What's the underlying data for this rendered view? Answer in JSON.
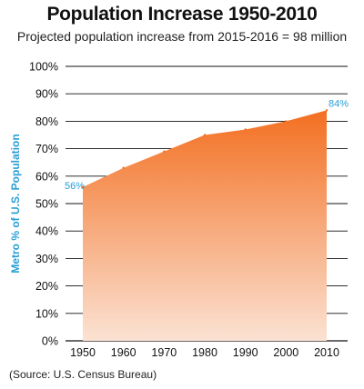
{
  "title": "Population Increase 1950-2010",
  "subtitle": "Projected population increase from 2015-2016 = 98 million",
  "source": "(Source: U.S. Census Bureau)",
  "colors": {
    "area_top": "#f36f21",
    "area_bottom": "#fbe2d3",
    "accent": "#2a9fd6",
    "grid": "#111111"
  },
  "chart_data": {
    "type": "area",
    "x": [
      1950,
      1960,
      1970,
      1980,
      1990,
      2000,
      2010
    ],
    "series": [
      {
        "values": [
          56,
          63,
          69,
          75,
          77,
          80,
          84
        ]
      }
    ],
    "x_tick_labels": [
      "1950",
      "1960",
      "1970",
      "1980",
      "1990",
      "2000",
      "2010"
    ],
    "y_tick_labels": [
      "0%",
      "10%",
      "20%",
      "30%",
      "40%",
      "50%",
      "60%",
      "70%",
      "80%",
      "90%",
      "100%"
    ],
    "ylabel": "Metro % of U.S. Population",
    "xlabel": "",
    "ylim": [
      0,
      100
    ],
    "xlim": [
      1950,
      2010
    ],
    "grid": true,
    "annotations": [
      {
        "x": 1950,
        "y": 56,
        "text": "56%"
      },
      {
        "x": 2010,
        "y": 84,
        "text": "84%"
      }
    ]
  }
}
